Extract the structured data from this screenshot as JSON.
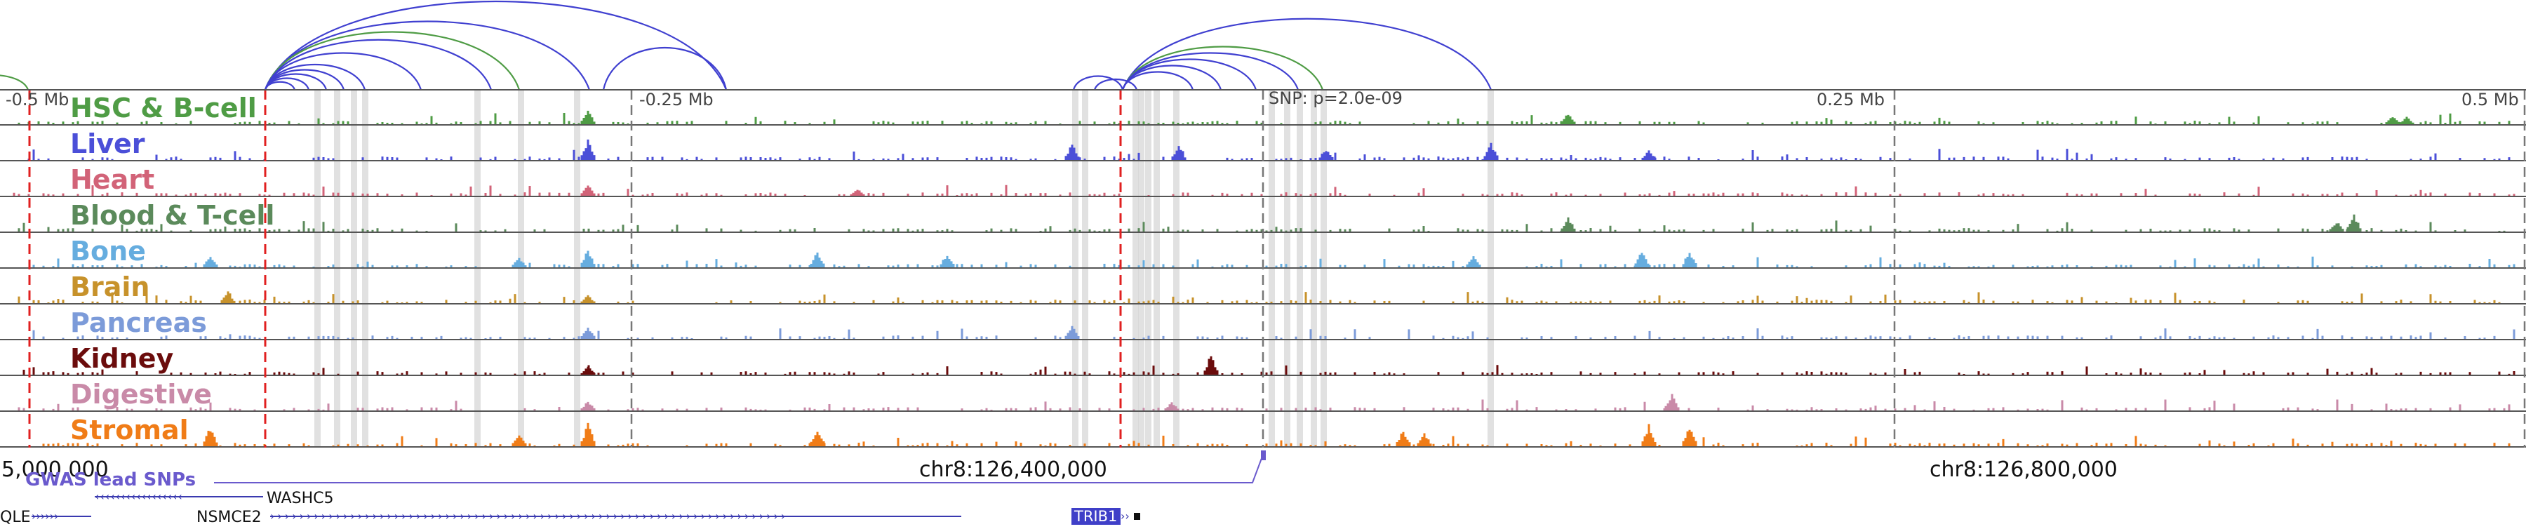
{
  "tracks": [
    {
      "label": "HSC & B-cell",
      "color": "#4f9c45"
    },
    {
      "label": "Liver",
      "color": "#4b4fd8"
    },
    {
      "label": "Heart",
      "color": "#d26378"
    },
    {
      "label": "Blood & T-cell",
      "color": "#5b8a5b"
    },
    {
      "label": "Bone",
      "color": "#66addf"
    },
    {
      "label": "Brain",
      "color": "#c7922b"
    },
    {
      "label": "Pancreas",
      "color": "#7c9bd9"
    },
    {
      "label": "Kidney",
      "color": "#6b0c0c"
    },
    {
      "label": "Digestive",
      "color": "#c98aa8"
    },
    {
      "label": "Stromal",
      "color": "#f07c17"
    }
  ],
  "distance_labels": [
    "-0.5 Mb",
    "-0.25 Mb",
    "SNP: p=2.0e-09",
    "0.25 Mb",
    "0.5 Mb"
  ],
  "coordinates": [
    "5,000,000",
    "chr8:126,400,000",
    "chr8:126,800,000"
  ],
  "gwas_label": "GWAS lead SNPs",
  "genes": [
    {
      "name": "WASHC5",
      "strand": "minus"
    },
    {
      "name": "QLE",
      "strand": "plus"
    },
    {
      "name": "NSMCE2",
      "strand": "plus"
    },
    {
      "name": "TRIB1",
      "strand": "plus"
    }
  ],
  "colors": {
    "loop_blue": "#4040d0",
    "loop_green": "#4f9c45",
    "red_dash": "#e02020",
    "grey_dash": "#777777",
    "gwas": "#6a5acd",
    "track_line": "#555555"
  }
}
